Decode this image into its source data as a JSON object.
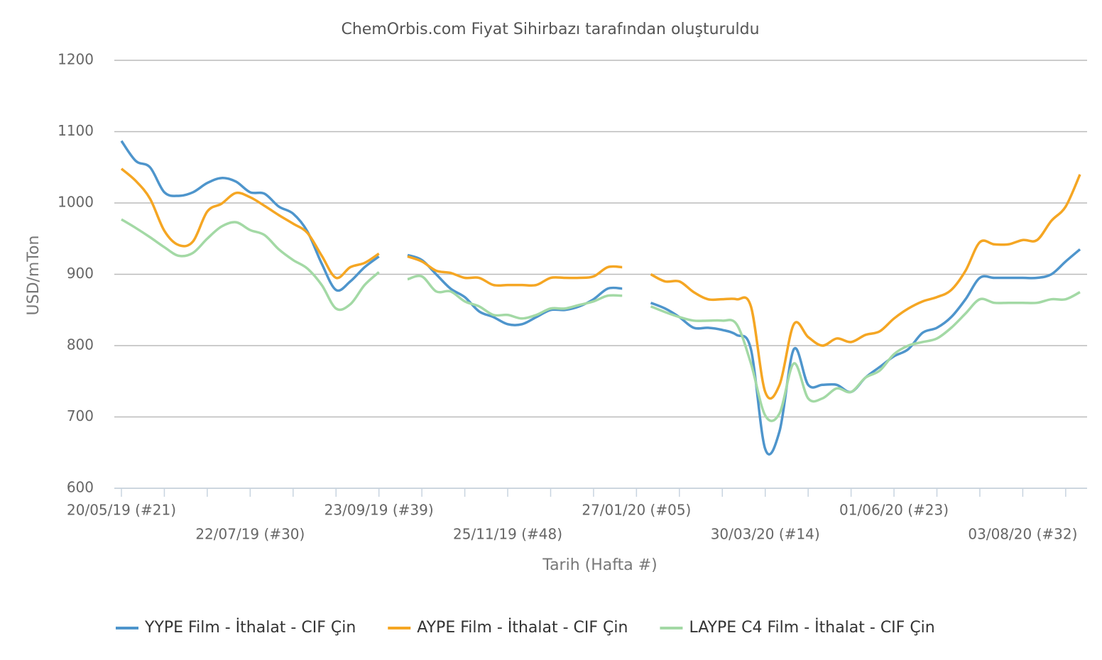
{
  "chart_data": {
    "type": "line",
    "title": "ChemOrbis.com Fiyat Sihirbazı tarafından oluşturuldu",
    "xlabel": "Tarih (Hafta #)",
    "ylabel": "USD/mTon",
    "categories": [
      "20/05/19 (#21)",
      null,
      null,
      null,
      null,
      null,
      null,
      null,
      null,
      "22/07/19 (#30)",
      null,
      null,
      null,
      null,
      null,
      null,
      null,
      null,
      "23/09/19 (#39)",
      null,
      null,
      null,
      null,
      null,
      null,
      null,
      null,
      "25/11/19 (#48)",
      null,
      null,
      null,
      null,
      null,
      null,
      null,
      null,
      "27/01/20 (#05)",
      null,
      null,
      null,
      null,
      null,
      null,
      null,
      null,
      "30/03/20 (#14)",
      null,
      null,
      null,
      null,
      null,
      null,
      null,
      null,
      "01/06/20 (#23)",
      null,
      null,
      null,
      null,
      null,
      null,
      null,
      null,
      "03/08/20 (#32)",
      null,
      null,
      null,
      null
    ],
    "series": [
      {
        "name": "YYPE Film - İthalat - CIF Çin",
        "color": "#4e95cc",
        "values": [
          1087,
          1059,
          1050,
          1015,
          1010,
          1015,
          1028,
          1035,
          1030,
          1015,
          1013,
          995,
          985,
          960,
          915,
          878,
          890,
          910,
          925,
          null,
          927,
          920,
          900,
          880,
          868,
          848,
          840,
          830,
          830,
          840,
          850,
          850,
          855,
          865,
          880,
          880,
          null,
          860,
          852,
          840,
          825,
          825,
          822,
          815,
          795,
          655,
          680,
          795,
          745,
          745,
          745,
          735,
          755,
          770,
          785,
          795,
          818,
          825,
          840,
          865,
          895,
          895,
          895,
          895,
          895,
          900,
          918,
          935
        ]
      },
      {
        "name": "AYPE Film - İthalat  - CIF Çin",
        "color": "#f5a623",
        "values": [
          1048,
          1031,
          1006,
          961,
          941,
          946,
          988,
          999,
          1014,
          1008,
          996,
          983,
          971,
          958,
          926,
          895,
          910,
          916,
          929,
          null,
          925,
          918,
          905,
          902,
          895,
          895,
          885,
          885,
          885,
          885,
          895,
          895,
          895,
          897,
          910,
          910,
          null,
          900,
          890,
          890,
          875,
          865,
          865,
          865,
          855,
          735,
          745,
          830,
          812,
          800,
          810,
          805,
          815,
          820,
          838,
          852,
          862,
          868,
          878,
          905,
          945,
          942,
          942,
          948,
          948,
          975,
          995,
          1040
        ]
      },
      {
        "name": "LAYPE C4 Film - İthalat  - CIF Çin",
        "color": "#a3d9a5",
        "values": [
          977,
          965,
          952,
          938,
          926,
          930,
          950,
          967,
          973,
          962,
          955,
          935,
          920,
          908,
          885,
          852,
          858,
          885,
          903,
          null,
          893,
          897,
          876,
          876,
          862,
          855,
          843,
          843,
          838,
          843,
          852,
          852,
          857,
          862,
          870,
          870,
          null,
          855,
          847,
          840,
          835,
          835,
          835,
          830,
          775,
          702,
          705,
          775,
          726,
          726,
          740,
          735,
          755,
          765,
          788,
          800,
          805,
          810,
          825,
          845,
          865,
          860,
          860,
          860,
          860,
          865,
          865,
          875
        ]
      }
    ],
    "ylim": [
      600,
      1200
    ],
    "yticks": [
      600,
      700,
      800,
      900,
      1000,
      1100,
      1200
    ],
    "grid": true,
    "legend": "bottom"
  }
}
